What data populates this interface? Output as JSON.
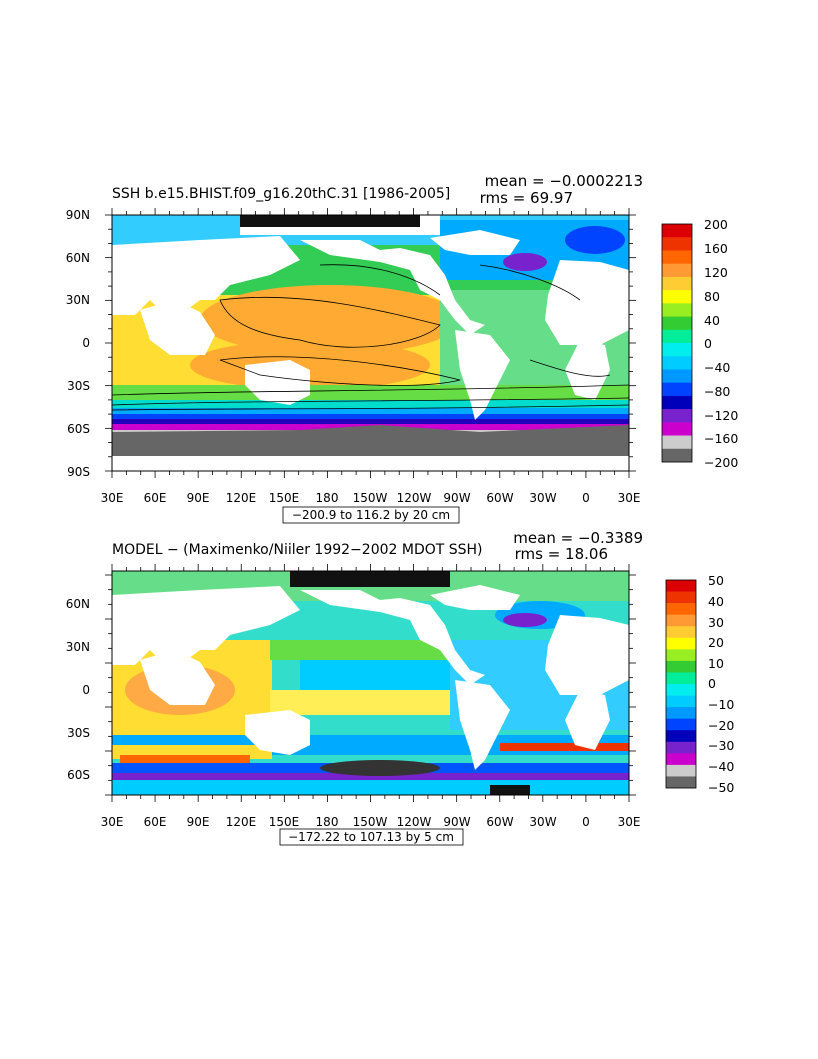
{
  "panel1": {
    "title": "SSH b.e15.BHIST.f09_g16.20thC.31 [1986-2005]",
    "mean": "mean = −0.0002213",
    "rms": "rms = 69.97",
    "lat_labels": [
      "90N",
      "60N",
      "30N",
      "0",
      "30S",
      "60S",
      "90S"
    ],
    "lon_labels": [
      "30E",
      "60E",
      "90E",
      "120E",
      "150E",
      "180",
      "150W",
      "120W",
      "90W",
      "60W",
      "30W",
      "0",
      "30E"
    ],
    "range": "−200.9 to 116.2 by 20 cm",
    "colorbar_labels": [
      "200",
      "160",
      "120",
      "80",
      "40",
      "0",
      "−40",
      "−80",
      "−120",
      "−160",
      "−200"
    ],
    "colorbar_colors": [
      "#dd0000",
      "#ee3300",
      "#ff6600",
      "#ff9933",
      "#ffcc33",
      "#ffff00",
      "#99ee22",
      "#33cc33",
      "#00ee99",
      "#00eeee",
      "#00ccff",
      "#0099ff",
      "#0044ff",
      "#0000bb",
      "#7722cc",
      "#cc00cc",
      "#cccccc",
      "#666666"
    ]
  },
  "panel2": {
    "title": "MODEL − (Maximenko/Niiler 1992−2002 MDOT SSH)",
    "mean": "mean = −0.3389",
    "rms": "rms = 18.06",
    "lat_labels": [
      "60N",
      "30N",
      "0",
      "30S",
      "60S"
    ],
    "lon_labels": [
      "30E",
      "60E",
      "90E",
      "120E",
      "150E",
      "180",
      "150W",
      "120W",
      "90W",
      "60W",
      "30W",
      "0",
      "30E"
    ],
    "range": "−172.22 to 107.13 by 5 cm",
    "colorbar_labels": [
      "50",
      "40",
      "30",
      "20",
      "10",
      "0",
      "−10",
      "−20",
      "−30",
      "−40",
      "−50"
    ],
    "colorbar_colors": [
      "#dd0000",
      "#ee3300",
      "#ff6600",
      "#ff9933",
      "#ffcc33",
      "#ffff00",
      "#99ee22",
      "#33cc33",
      "#00ee99",
      "#00eeee",
      "#00ccff",
      "#0099ff",
      "#0044ff",
      "#0000bb",
      "#7722cc",
      "#cc00cc",
      "#cccccc",
      "#666666"
    ]
  }
}
